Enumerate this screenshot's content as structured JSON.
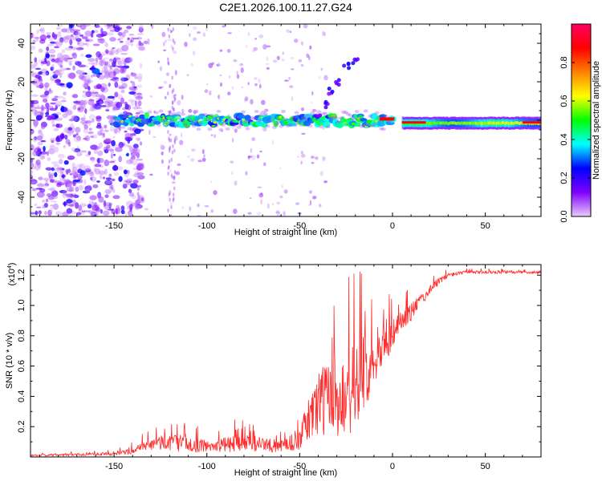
{
  "figure_title": "C2E1.2026.100.11.27.G24",
  "chart_data": [
    {
      "type": "heatmap",
      "xlabel": "Height of straight line (km)",
      "ylabel": "Frequency (Hz)",
      "xlim": [
        -195,
        80
      ],
      "ylim": [
        -50,
        50
      ],
      "xticks": [
        -150,
        -100,
        -50,
        0,
        50
      ],
      "yticks": [
        -40,
        -20,
        0,
        20,
        40
      ],
      "colorbar": {
        "label": "Normalized spectral amplitude",
        "range": [
          0,
          1
        ],
        "ticks": [
          0.0,
          0.2,
          0.4,
          0.6,
          0.8
        ],
        "tick_labels": [
          "0.0",
          "0.2",
          "0.4",
          "0.6",
          "0.8"
        ],
        "colormap_stops": [
          "#e8ccf8",
          "#8000ff",
          "#0000ff",
          "#00ffff",
          "#00ff00",
          "#ffff00",
          "#ff8000",
          "#ff0000",
          "#ff0060"
        ]
      },
      "ridge": {
        "description": "main spectral ridge near 0 Hz",
        "x_range": [
          -150,
          80
        ],
        "frequency_hz": 0,
        "branch": [
          [
            -40,
            2
          ],
          [
            -35,
            8
          ],
          [
            -33,
            15
          ],
          [
            -30,
            20
          ],
          [
            -25,
            28
          ],
          [
            -20,
            31
          ]
        ]
      }
    },
    {
      "type": "line",
      "xlabel": "Height of straight line (km)",
      "ylabel": "SNR (10 * v/v)",
      "y_multiplier": "(x10",
      "y_multiplier_exp": "4",
      "y_multiplier_close": ")",
      "xlim": [
        -195,
        80
      ],
      "ylim": [
        0,
        1.27
      ],
      "xticks": [
        -150,
        -100,
        -50,
        0,
        50
      ],
      "yticks": [
        0.2,
        0.4,
        0.6,
        0.8,
        1.0,
        1.2
      ],
      "ytick_labels": [
        "0.2",
        "0.4",
        "0.6",
        "0.8",
        "1.0",
        "1.2"
      ],
      "series": [
        {
          "color": "#ff2a2a",
          "envelope_x": [
            -195,
            -150,
            -140,
            -130,
            -120,
            -110,
            -100,
            -90,
            -80,
            -70,
            -60,
            -50,
            -45,
            -40,
            -35,
            -30,
            -25,
            -20,
            -15,
            -10,
            -5,
            0,
            5,
            10,
            15,
            20,
            25,
            30,
            40,
            50,
            60,
            70,
            80
          ],
          "envelope_y": [
            0.01,
            0.02,
            0.04,
            0.08,
            0.1,
            0.08,
            0.07,
            0.08,
            0.1,
            0.08,
            0.07,
            0.12,
            0.25,
            0.35,
            0.4,
            0.38,
            0.4,
            0.45,
            0.55,
            0.65,
            0.75,
            0.8,
            0.9,
            0.96,
            1.03,
            1.1,
            1.16,
            1.2,
            1.22,
            1.22,
            1.22,
            1.22,
            1.22
          ],
          "spread_y": [
            0.01,
            0.02,
            0.04,
            0.08,
            0.12,
            0.1,
            0.08,
            0.1,
            0.12,
            0.1,
            0.08,
            0.15,
            0.3,
            0.45,
            0.5,
            0.55,
            0.5,
            0.6,
            0.5,
            0.35,
            0.25,
            0.2,
            0.15,
            0.12,
            0.08,
            0.06,
            0.05,
            0.03,
            0.02,
            0.02,
            0.02,
            0.02,
            0.02
          ]
        }
      ]
    }
  ]
}
